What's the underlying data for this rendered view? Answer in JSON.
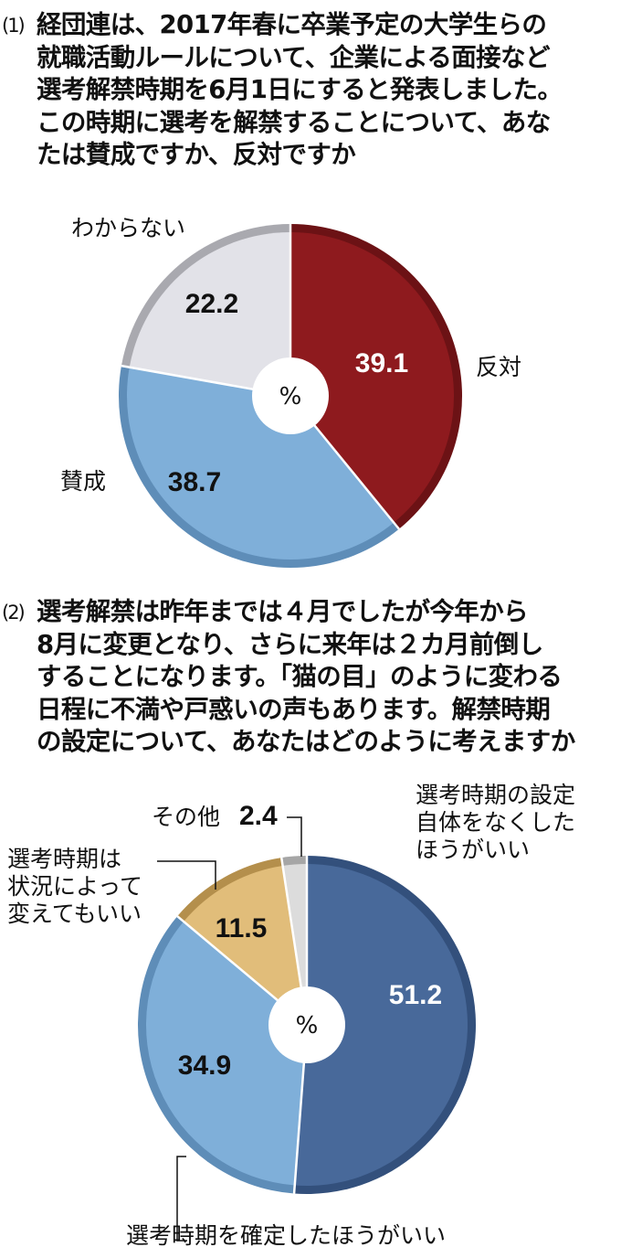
{
  "q1": {
    "number": "(1)",
    "text": "経団連は、2017年春に卒業予定の大学生らの\n就職活動ルールについて、企業による面接など\n選考解禁時期を6月1日にすると発表しました。\nこの時期に選考を解禁することについて、あな\nたは賛成ですか、反対ですか"
  },
  "q2": {
    "number": "(2)",
    "text": "選考解禁は昨年までは４月でしたが今年から\n8月に変更となり、さらに来年は２カ月前倒し\nすることになります。「猫の目」のように変わる\n日程に不満や戸惑いの声もあります。解禁時期\nの設定について、あなたはどのように考えますか"
  },
  "chart_data": [
    {
      "type": "pie",
      "unit": "%",
      "slices": [
        {
          "label": "反対",
          "value": 39.1,
          "color": "#8e1a1e",
          "rim": "#6c1215",
          "text_color": "#ffffff"
        },
        {
          "label": "賛成",
          "value": 38.7,
          "color": "#7fafd9",
          "rim": "#5e8db8",
          "text_color": "#111111"
        },
        {
          "label": "わからない",
          "value": 22.2,
          "color": "#e2e2e8",
          "rim": "#a9a9af",
          "text_color": "#111111"
        }
      ]
    },
    {
      "type": "pie",
      "unit": "%",
      "slices": [
        {
          "label": "選考時期の設定\n自体をなくした\nほうがいい",
          "value": 51.2,
          "color": "#48699a",
          "rim": "#33507c",
          "text_color": "#ffffff"
        },
        {
          "label": "選考時期を確定したほうがいい",
          "value": 34.9,
          "color": "#7fafd9",
          "rim": "#5e8db8",
          "text_color": "#111111"
        },
        {
          "label": "選考時期は\n状況によって\n変えてもいい",
          "value": 11.5,
          "color": "#e1bd7a",
          "rim": "#b48f4c",
          "text_color": "#111111"
        },
        {
          "label": "その他",
          "value": 2.4,
          "color": "#dcdcdc",
          "rim": "#a6a6a6",
          "text_color": "#111111"
        }
      ]
    }
  ]
}
